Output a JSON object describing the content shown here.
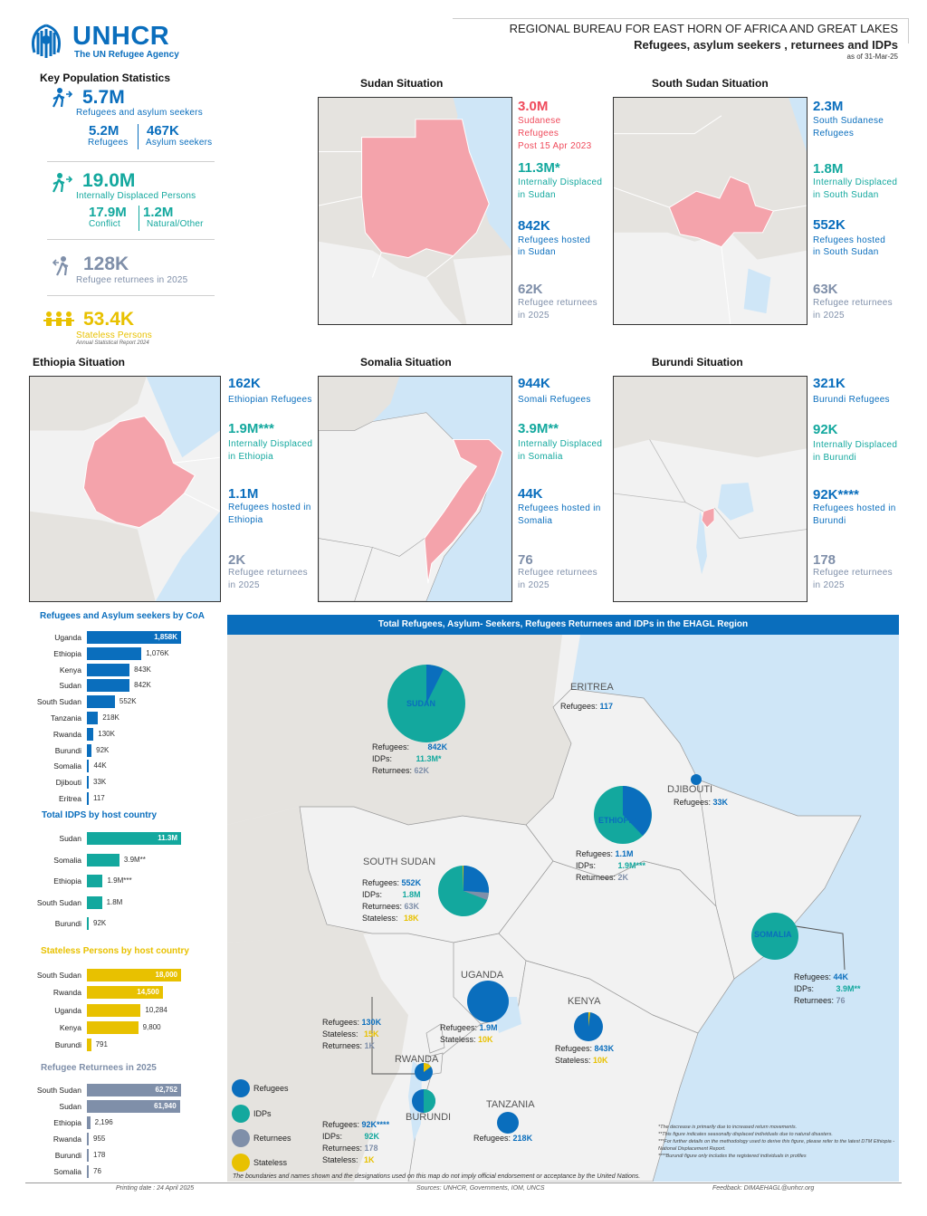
{
  "header": {
    "org": "UNHCR",
    "tagline": "The UN Refugee Agency",
    "bureau": "REGIONAL BUREAU FOR EAST HORN OF AFRICA AND GREAT LAKES",
    "subtitle": "Refugees, asylum seekers , returnees and IDPs",
    "asof": "as of  31-Mar-25"
  },
  "key_stats": {
    "title": "Key Population Statistics",
    "refugees_asylum": {
      "value": "5.7M",
      "label": "Refugees and asylum seekers"
    },
    "refugees": {
      "value": "5.2M",
      "label": "Refugees"
    },
    "asylum": {
      "value": "467K",
      "label": "Asylum seekers"
    },
    "idps": {
      "value": "19.0M",
      "label": "Internally Displaced Persons"
    },
    "conflict": {
      "value": "17.9M",
      "label": "Conflict"
    },
    "natural": {
      "value": "1.2M",
      "label": "Natural/Other"
    },
    "returnees": {
      "value": "128K",
      "label": "Refugee returnees in 2025"
    },
    "stateless": {
      "value": "53.4K",
      "label": "Stateless Persons",
      "note": "Annual Statistical Report 2024"
    }
  },
  "situations": {
    "sudan": {
      "title": "Sudan Situation",
      "s1v": "3.0M",
      "s1l1": "Sudanese",
      "s1l2": "Refugees",
      "s1l3": "Post 15 Apr 2023",
      "s2v": "11.3M*",
      "s2l1": "Internally Displaced",
      "s2l2": "in Sudan",
      "s3v": "842K",
      "s3l1": "Refugees hosted",
      "s3l2": "in Sudan",
      "s4v": "62K",
      "s4l1": "Refugee returnees",
      "s4l2": "in 2025"
    },
    "southsudan": {
      "title": "South Sudan Situation",
      "s1v": "2.3M",
      "s1l1": "South Sudanese",
      "s1l2": "Refugees",
      "s2v": "1.8M",
      "s2l1": "Internally Displaced",
      "s2l2": "in South Sudan",
      "s3v": "552K",
      "s3l1": "Refugees hosted",
      "s3l2": "in South Sudan",
      "s4v": "63K",
      "s4l1": "Refugee returnees",
      "s4l2": "in 2025"
    },
    "ethiopia": {
      "title": "Ethiopia Situation",
      "s1v": "162K",
      "s1l1": "Ethiopian Refugees",
      "s2v": "1.9M***",
      "s2l1": "Internally Displaced",
      "s2l2": "in Ethiopia",
      "s3v": "1.1M",
      "s3l1": "Refugees hosted in",
      "s3l2": "Ethiopia",
      "s4v": "2K",
      "s4l1": "Refugee returnees",
      "s4l2": "in 2025"
    },
    "somalia": {
      "title": "Somalia Situation",
      "s1v": "944K",
      "s1l1": "Somali Refugees",
      "s2v": "3.9M**",
      "s2l1": "Internally Displaced",
      "s2l2": "in Somalia",
      "s3v": "44K",
      "s3l1": "Refugees hosted in",
      "s3l2": "Somalia",
      "s4v": "76",
      "s4l1": "Refugee returnees",
      "s4l2": "in 2025"
    },
    "burundi": {
      "title": "Burundi Situation",
      "s1v": "321K",
      "s1l1": "Burundi Refugees",
      "s2v": "92K",
      "s2l1": "Internally Displaced",
      "s2l2": "in Burundi",
      "s3v": "92K****",
      "s3l1": "Refugees hosted in",
      "s3l2": "Burundi",
      "s4v": "178",
      "s4l1": "Refugee returnees",
      "s4l2": "in 2025"
    }
  },
  "chart_data": [
    {
      "type": "bar",
      "title": "Refugees and Asylum seekers by CoA",
      "color": "#0a6ebd",
      "categories": [
        "Uganda",
        "Ethiopia",
        "Kenya",
        "Sudan",
        "South Sudan",
        "Tanzania",
        "Rwanda",
        "Burundi",
        "Somalia",
        "Djibouti",
        "Eritrea"
      ],
      "values": [
        1858000,
        1076000,
        843000,
        842000,
        552000,
        218000,
        130000,
        92000,
        44000,
        33000,
        117
      ],
      "labels": [
        "1,858K",
        "1,076K",
        "843K",
        "842K",
        "552K",
        "218K",
        "130K",
        "92K",
        "44K",
        "33K",
        "117"
      ]
    },
    {
      "type": "bar",
      "title": "Total IDPS by host country",
      "color": "#13a89e",
      "categories": [
        "Sudan",
        "Somalia",
        "Ethiopia",
        "South Sudan",
        "Burundi"
      ],
      "values": [
        11300000,
        3900000,
        1900000,
        1800000,
        92000
      ],
      "labels": [
        "11.3M",
        "3.9M**",
        "1.9M***",
        "1.8M",
        "92K"
      ]
    },
    {
      "type": "bar",
      "title": "Stateless Persons by host country",
      "color": "#e8c100",
      "categories": [
        "South Sudan",
        "Rwanda",
        "Uganda",
        "Kenya",
        "Burundi"
      ],
      "values": [
        18000,
        14500,
        10284,
        9800,
        791
      ],
      "labels": [
        "18,000",
        "14,500",
        "10,284",
        "9,800",
        "791"
      ]
    },
    {
      "type": "bar",
      "title": "Refugee Returnees in 2025",
      "color": "#7f8fa9",
      "categories": [
        "South Sudan",
        "Sudan",
        "Ethiopia",
        "Rwanda",
        "Burundi",
        "Somalia"
      ],
      "values": [
        62752,
        61940,
        2196,
        955,
        178,
        76
      ],
      "labels": [
        "62,752",
        "61,940",
        "2,196",
        "955",
        "178",
        "76"
      ]
    }
  ],
  "main_map": {
    "title": "Total Refugees, Asylum- Seekers, Refugees Returnees and IDPs in the EHAGL Region",
    "countries": {
      "sudan": "SUDAN",
      "eritrea": "ERITREA",
      "djibouti": "DJIBOUTI",
      "ethiopia": "ETHIOPIA",
      "southsudan": "SOUTH SUDAN",
      "somalia": "SOMALIA",
      "uganda": "UGANDA",
      "kenya": "KENYA",
      "rwanda": "RWANDA",
      "burundi": "BURUNDI",
      "tanzania": "TANZANIA"
    },
    "labels": {
      "ref": "Refugees:",
      "idp": "IDPs:",
      "ret": "Returnees:",
      "sta": "Stateless:"
    },
    "sudan": {
      "ref": "842K",
      "idp": "11.3M*",
      "ret": "62K"
    },
    "eritrea": {
      "ref": "117"
    },
    "djibouti": {
      "ref": "33K"
    },
    "ethiopia": {
      "ref": "1.1M",
      "idp": "1.9M***",
      "ret": "2K"
    },
    "southsudan": {
      "ref": "552K",
      "idp": "1.8M",
      "ret": "63K",
      "sta": "18K"
    },
    "somalia": {
      "ref": "44K",
      "idp": "3.9M**",
      "ret": "76"
    },
    "uganda": {
      "ref": "1.9M",
      "sta": "10K"
    },
    "kenya": {
      "ref": "843K",
      "sta": "10K"
    },
    "rwanda": {
      "ref": "130K",
      "sta": "15K",
      "ret": "1K"
    },
    "burundi": {
      "ref": "92K****",
      "idp": "92K",
      "ret": "178",
      "sta": "1K"
    },
    "tanzania": {
      "ref": "218K"
    },
    "legend": {
      "refugees": "Refugees",
      "idps": "IDPs",
      "returnees": "Returnees",
      "stateless": "Stateless"
    },
    "notes": [
      "*The decrease is primarily due to increased return movements.",
      "**This figure indicates seasonally displaced individuals due to natural disasters.",
      "***For further details on the methodology used to derive this figure, please refer to the latest DTM Ethiopia - National Displacement Report.",
      "****Burundi figure only includes the registered individuals in profiles"
    ],
    "disclaimer": "The boundaries and names shown and the designations used on this map do not imply official endorsement or acceptance by the United Nations."
  },
  "footer": {
    "printing": "Printing date : 24 April 2025",
    "sources": "Sources: UNHCR, Governments, IOM, UNCS",
    "feedback": "Feedback: DIMAEHAGL@unhcr.org"
  },
  "colors": {
    "refugees": "#0a6ebd",
    "idps": "#13a89e",
    "returnees": "#7f8fa9",
    "stateless": "#e8c100",
    "highlight": "#f4a3ab"
  }
}
